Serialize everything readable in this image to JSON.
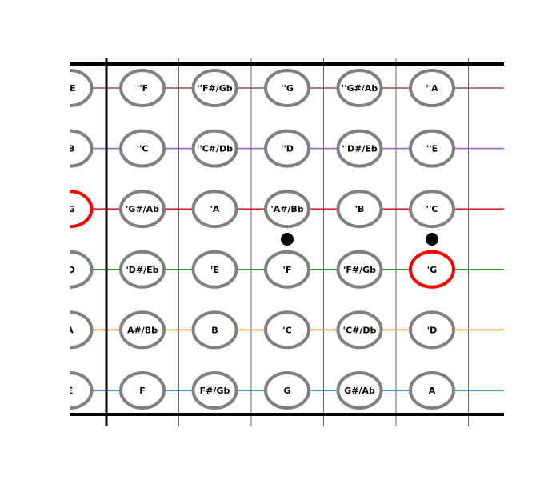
{
  "strings": [
    {
      "color": "#8c564b",
      "notes": [
        "''E",
        "''F",
        "''F#/Gb",
        "''G",
        "''G#/Ab",
        "''A"
      ]
    },
    {
      "color": "#9467bd",
      "notes": [
        "'B",
        "''C",
        "''C#/Db",
        "''D",
        "''D#/Eb",
        "''E"
      ]
    },
    {
      "color": "#d62728",
      "notes": [
        "'G",
        "'G#/Ab",
        "'A",
        "'A#/Bb",
        "'B",
        "''C"
      ]
    },
    {
      "color": "#2ca02c",
      "notes": [
        "'D",
        "'D#/Eb",
        "'E",
        "'F",
        "'F#/Gb",
        "'G"
      ]
    },
    {
      "color": "#ff7f0e",
      "notes": [
        "A",
        "A#/Bb",
        "B",
        "'C",
        "'C#/Db",
        "'D"
      ]
    },
    {
      "color": "#1f77b4",
      "notes": [
        "E",
        "F",
        "F#/Gb",
        "G",
        "G#/Ab",
        "A"
      ]
    }
  ],
  "highlighted_notes": [
    {
      "string": 2,
      "fret": 0
    },
    {
      "string": 3,
      "fret": 5
    }
  ],
  "fret_markers": [
    3,
    5
  ],
  "colors": {
    "circle_border": "#808080",
    "highlight_border": "#ff0000",
    "frame": "#000000",
    "marker": "#000000"
  }
}
